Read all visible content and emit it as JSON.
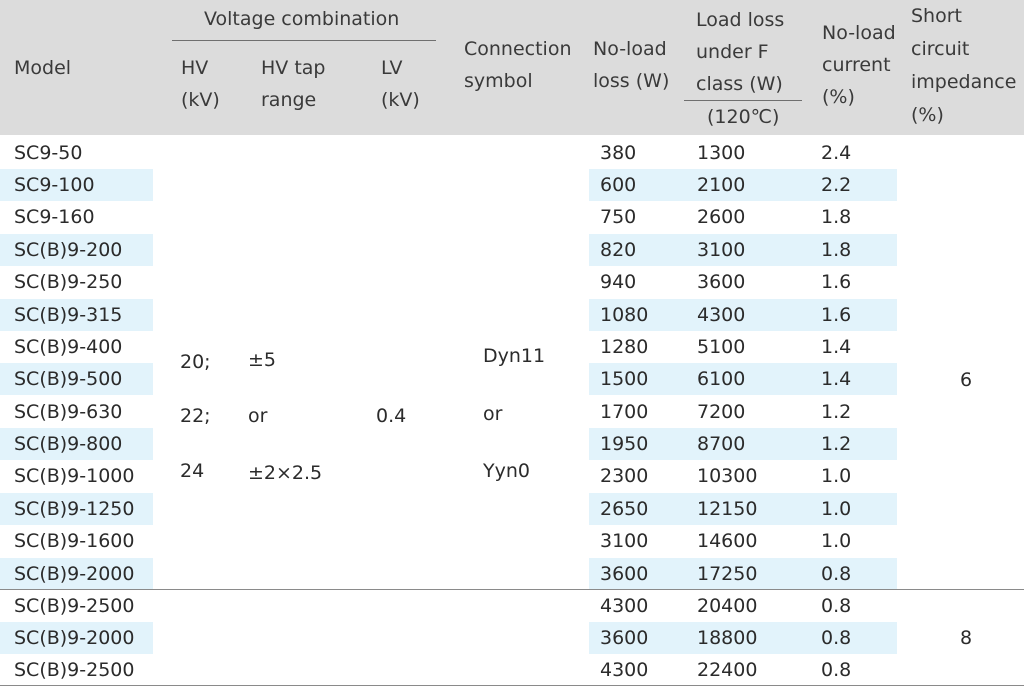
{
  "header": {
    "model": "Model",
    "voltage_combination": "Voltage combination",
    "hv_line1": "HV",
    "hv_line2": "(kV)",
    "hv_tap_line1": "HV tap",
    "hv_tap_line2": "range",
    "lv_line1": "LV",
    "lv_line2": "(kV)",
    "connection_line1": "Connection",
    "connection_line2": "symbol",
    "noload_loss_line1": "No-load",
    "noload_loss_line2": "loss (W)",
    "load_loss_line1": "Load loss",
    "load_loss_line2": "under F",
    "load_loss_line3": "class (W)",
    "load_loss_line4": "(120℃)",
    "noload_current_line1": "No-load",
    "noload_current_line2": "current",
    "noload_current_line3": "(%)",
    "impedance_line1": "Short",
    "impedance_line2": "circuit",
    "impedance_line3": "impedance",
    "impedance_line4": "(%)"
  },
  "merged": {
    "hv1": "20;",
    "hv2": "22;",
    "hv3": "24",
    "tap1": "±5",
    "tap2": "or",
    "tap3": "±2×2.5",
    "lv": "0.4",
    "conn1": "Dyn11",
    "conn2": "or",
    "conn3": "Yyn0",
    "impedance_group1": "6",
    "impedance_group2": "8"
  },
  "rows": [
    {
      "model": "SC9-50",
      "noload_loss": "380",
      "load_loss": "1300",
      "current": "2.4"
    },
    {
      "model": "SC9-100",
      "noload_loss": "600",
      "load_loss": "2100",
      "current": "2.2"
    },
    {
      "model": "SC9-160",
      "noload_loss": "750",
      "load_loss": "2600",
      "current": "1.8"
    },
    {
      "model": "SC(B)9-200",
      "noload_loss": "820",
      "load_loss": "3100",
      "current": "1.8"
    },
    {
      "model": "SC(B)9-250",
      "noload_loss": "940",
      "load_loss": "3600",
      "current": "1.6"
    },
    {
      "model": "SC(B)9-315",
      "noload_loss": "1080",
      "load_loss": "4300",
      "current": "1.6"
    },
    {
      "model": "SC(B)9-400",
      "noload_loss": "1280",
      "load_loss": "5100",
      "current": "1.4"
    },
    {
      "model": "SC(B)9-500",
      "noload_loss": "1500",
      "load_loss": "6100",
      "current": "1.4"
    },
    {
      "model": "SC(B)9-630",
      "noload_loss": "1700",
      "load_loss": "7200",
      "current": "1.2"
    },
    {
      "model": "SC(B)9-800",
      "noload_loss": "1950",
      "load_loss": "8700",
      "current": "1.2"
    },
    {
      "model": "SC(B)9-1000",
      "noload_loss": "2300",
      "load_loss": "10300",
      "current": "1.0"
    },
    {
      "model": "SC(B)9-1250",
      "noload_loss": "2650",
      "load_loss": "12150",
      "current": "1.0"
    },
    {
      "model": "SC(B)9-1600",
      "noload_loss": "3100",
      "load_loss": "14600",
      "current": "1.0"
    },
    {
      "model": "SC(B)9-2000",
      "noload_loss": "3600",
      "load_loss": "17250",
      "current": "0.8"
    },
    {
      "model": "SC(B)9-2500",
      "noload_loss": "4300",
      "load_loss": "20400",
      "current": "0.8"
    },
    {
      "model": "SC(B)9-2000",
      "noload_loss": "3600",
      "load_loss": "18800",
      "current": "0.8"
    },
    {
      "model": "SC(B)9-2500",
      "noload_loss": "4300",
      "load_loss": "22400",
      "current": "0.8"
    }
  ],
  "colors": {
    "header_bg": "#dcdcdc",
    "stripe_bg": "#e2f3fb",
    "text": "#2b2b2b"
  }
}
